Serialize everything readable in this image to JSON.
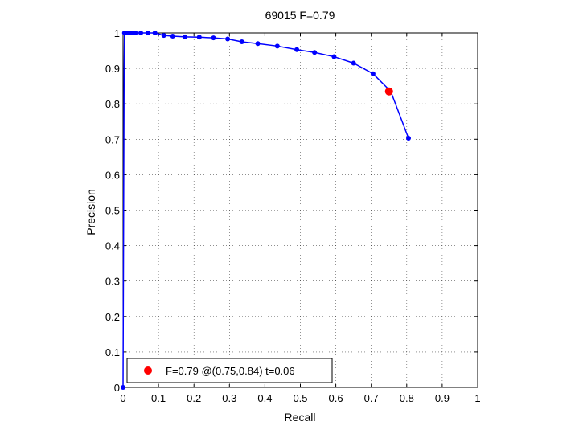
{
  "figure": {
    "background": "#ffffff"
  },
  "chart_data": {
    "type": "line",
    "title": "69015 F=0.79",
    "xlabel": "Recall",
    "ylabel": "Precision",
    "xlim": [
      0,
      1
    ],
    "ylim": [
      0,
      1
    ],
    "xticks": [
      0,
      0.1,
      0.2,
      0.3,
      0.4,
      0.5,
      0.6,
      0.7,
      0.8,
      0.9,
      1
    ],
    "xtick_labels": [
      "0",
      "0.1",
      "0.2",
      "0.3",
      "0.4",
      "0.5",
      "0.6",
      "0.7",
      "0.8",
      "0.9",
      "1"
    ],
    "yticks": [
      0,
      0.1,
      0.2,
      0.3,
      0.4,
      0.5,
      0.6,
      0.7,
      0.8,
      0.9,
      1
    ],
    "ytick_labels": [
      "0",
      "0.1",
      "0.2",
      "0.3",
      "0.4",
      "0.5",
      "0.6",
      "0.7",
      "0.8",
      "0.9",
      "1"
    ],
    "grid": true,
    "legend_position": "bottom-left",
    "series": [
      {
        "color": "#0000ff",
        "x": [
          0,
          0.003,
          0.004,
          0.005,
          0.007,
          0.01,
          0.013,
          0.017,
          0.022,
          0.028,
          0.035,
          0.05,
          0.07,
          0.09,
          0.115,
          0.14,
          0.175,
          0.215,
          0.255,
          0.295,
          0.335,
          0.38,
          0.435,
          0.49,
          0.54,
          0.595,
          0.65,
          0.705,
          0.755,
          0.805
        ],
        "y": [
          0,
          0.9,
          1.0,
          1.0,
          1.0,
          1.0,
          1.0,
          1.0,
          1.0,
          1.0,
          1.0,
          1.0,
          1.0,
          1.0,
          0.993,
          0.991,
          0.989,
          0.988,
          0.986,
          0.983,
          0.975,
          0.97,
          0.963,
          0.953,
          0.945,
          0.933,
          0.915,
          0.885,
          0.835,
          0.703
        ],
        "markers": [
          true,
          false,
          true,
          true,
          true,
          true,
          true,
          true,
          true,
          true,
          true,
          true,
          true,
          true,
          true,
          true,
          true,
          true,
          true,
          true,
          true,
          true,
          true,
          true,
          true,
          true,
          true,
          true,
          false,
          true
        ]
      }
    ],
    "highlight": {
      "color": "#ff0000",
      "x": 0.75,
      "y": 0.835,
      "label": "F=0.79 @(0.75,0.84) t=0.06"
    }
  }
}
